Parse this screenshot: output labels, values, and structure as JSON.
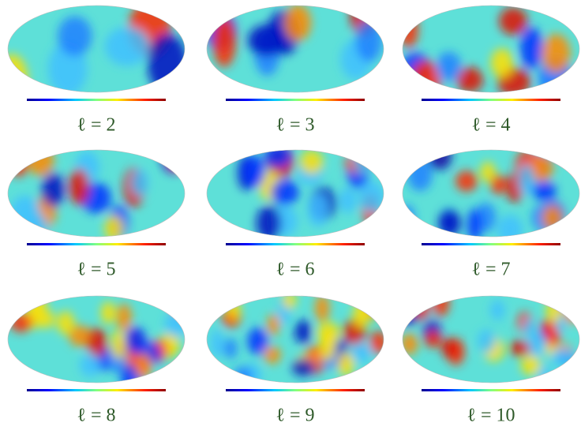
{
  "panels": [
    {
      "label": "ℓ = 2"
    },
    {
      "label": "ℓ = 3"
    },
    {
      "label": "ℓ = 4"
    },
    {
      "label": "ℓ = 5"
    },
    {
      "label": "ℓ = 6"
    },
    {
      "label": "ℓ = 7"
    },
    {
      "label": "ℓ = 8"
    },
    {
      "label": "ℓ = 9"
    },
    {
      "label": "ℓ = 10"
    }
  ]
}
